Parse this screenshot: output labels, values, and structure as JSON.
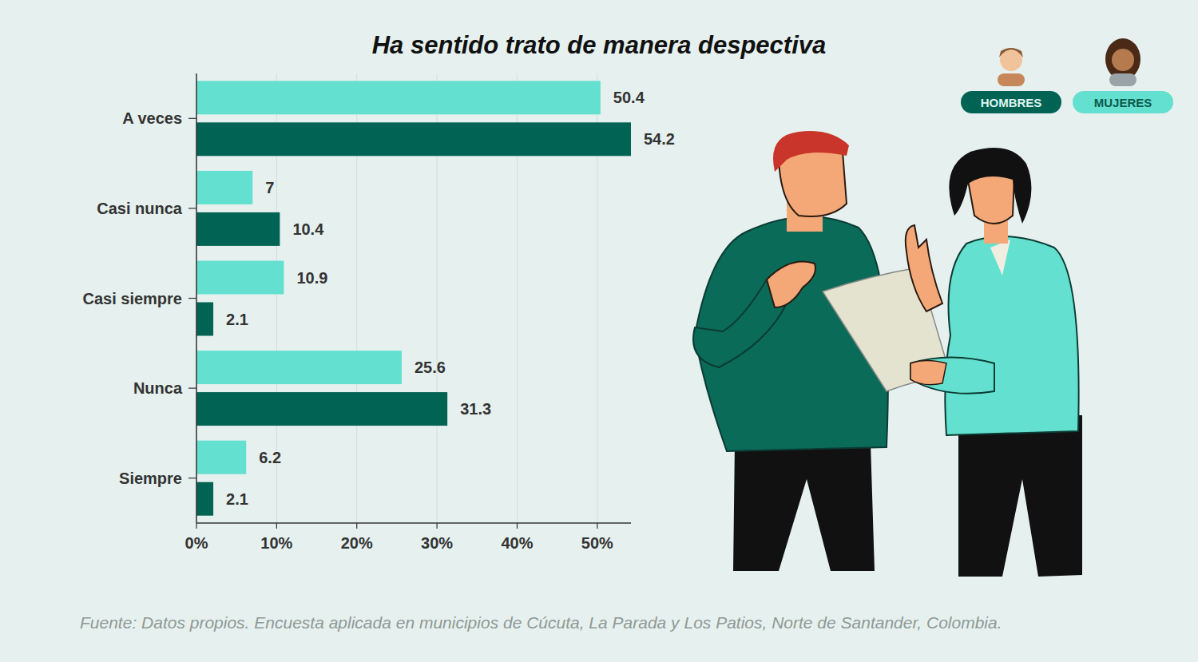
{
  "chart_data": {
    "type": "bar",
    "orientation": "horizontal",
    "title": "Ha sentido trato de manera despectiva",
    "source": "Fuente: Datos propios. Encuesta aplicada en municipios de Cúcuta, La Parada y Los Patios, Norte de Santander, Colombia.",
    "categories": [
      "A veces",
      "Casi nunca",
      "Casi siempre",
      "Nunca",
      "Siempre"
    ],
    "series": [
      {
        "name": "MUJERES",
        "color": "#63e0cf",
        "values": [
          50.4,
          7,
          10.9,
          25.6,
          6.2
        ]
      },
      {
        "name": "HOMBRES",
        "color": "#006353",
        "values": [
          54.2,
          10.4,
          2.1,
          31.3,
          2.1
        ]
      }
    ],
    "xlim": [
      0,
      54.2
    ],
    "xticks": [
      {
        "value": 0,
        "label": "0%"
      },
      {
        "value": 10,
        "label": "10%"
      },
      {
        "value": 20,
        "label": "20%"
      },
      {
        "value": 30,
        "label": "30%"
      },
      {
        "value": 40,
        "label": "40%"
      },
      {
        "value": 50,
        "label": "50%"
      }
    ],
    "grid": true,
    "data_labels": true,
    "legend": "top-right"
  }
}
